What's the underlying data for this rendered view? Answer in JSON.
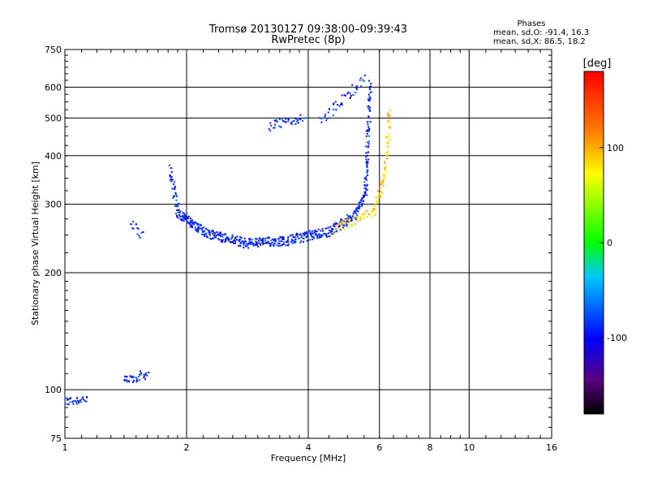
{
  "chart_data": {
    "type": "scatter",
    "title": "Tromsø 20130127 09:38:00–09:39:43",
    "subtitle": "RwPretec (8p)",
    "xlabel": "Frequency [MHz]",
    "ylabel": "Stationary phase Virtual Height [km]",
    "x_scale": "log",
    "y_scale": "log",
    "xlim": [
      1,
      16
    ],
    "ylim": [
      75,
      750
    ],
    "x_ticks": [
      1,
      2,
      4,
      6,
      8,
      10,
      16
    ],
    "x_tick_labels": [
      "1",
      "2",
      "4",
      "6",
      "8",
      "10",
      "16"
    ],
    "y_ticks": [
      75,
      100,
      200,
      300,
      400,
      500,
      600,
      750
    ],
    "y_tick_labels": [
      "75",
      "100",
      "200",
      "300",
      "400",
      "500",
      "600",
      "750"
    ],
    "grid": true,
    "colorbar": {
      "label": "[deg]",
      "range": [
        -180,
        180
      ],
      "ticks": [
        -100,
        0,
        100
      ],
      "tick_labels": [
        "-100",
        "0",
        "100"
      ]
    },
    "phase_stats": {
      "heading": "Phases",
      "o_line": "mean, sd,O: -91.4, 16.3",
      "x_line": "mean, sd,X:  86.5, 18.2"
    },
    "series": [
      {
        "name": "O",
        "color_phase": -91.4,
        "segments": [
          {
            "f0": 1.0,
            "f1": 1.13,
            "h0": 93,
            "h1": 95,
            "n": 30
          },
          {
            "f0": 1.4,
            "f1": 1.6,
            "h0": 105,
            "h1": 110,
            "n": 40
          },
          {
            "f0": 1.45,
            "f1": 1.55,
            "h0": 270,
            "h1": 250,
            "n": 14
          },
          {
            "f0": 1.82,
            "f1": 1.9,
            "h0": 370,
            "h1": 290,
            "n": 35
          },
          {
            "f0": 1.9,
            "f1": 2.2,
            "h0": 285,
            "h1": 255,
            "n": 90
          },
          {
            "f0": 2.2,
            "f1": 2.8,
            "h0": 255,
            "h1": 238,
            "n": 110
          },
          {
            "f0": 2.8,
            "f1": 3.6,
            "h0": 238,
            "h1": 242,
            "n": 110
          },
          {
            "f0": 3.6,
            "f1": 4.5,
            "h0": 243,
            "h1": 255,
            "n": 100
          },
          {
            "f0": 4.5,
            "f1": 5.2,
            "h0": 255,
            "h1": 280,
            "n": 70
          },
          {
            "f0": 5.2,
            "f1": 5.6,
            "h0": 280,
            "h1": 330,
            "n": 45
          },
          {
            "f0": 5.55,
            "f1": 5.7,
            "h0": 330,
            "h1": 620,
            "n": 80
          },
          {
            "f0": 4.3,
            "f1": 5.5,
            "h0": 490,
            "h1": 630,
            "n": 45
          },
          {
            "f0": 3.2,
            "f1": 3.9,
            "h0": 475,
            "h1": 500,
            "n": 40
          }
        ]
      },
      {
        "name": "X",
        "color_phase": 86.5,
        "segments": [
          {
            "f0": 4.6,
            "f1": 5.8,
            "h0": 258,
            "h1": 285,
            "n": 50
          },
          {
            "f0": 5.8,
            "f1": 6.2,
            "h0": 285,
            "h1": 360,
            "n": 35
          },
          {
            "f0": 6.2,
            "f1": 6.35,
            "h0": 360,
            "h1": 520,
            "n": 35
          }
        ]
      }
    ]
  }
}
